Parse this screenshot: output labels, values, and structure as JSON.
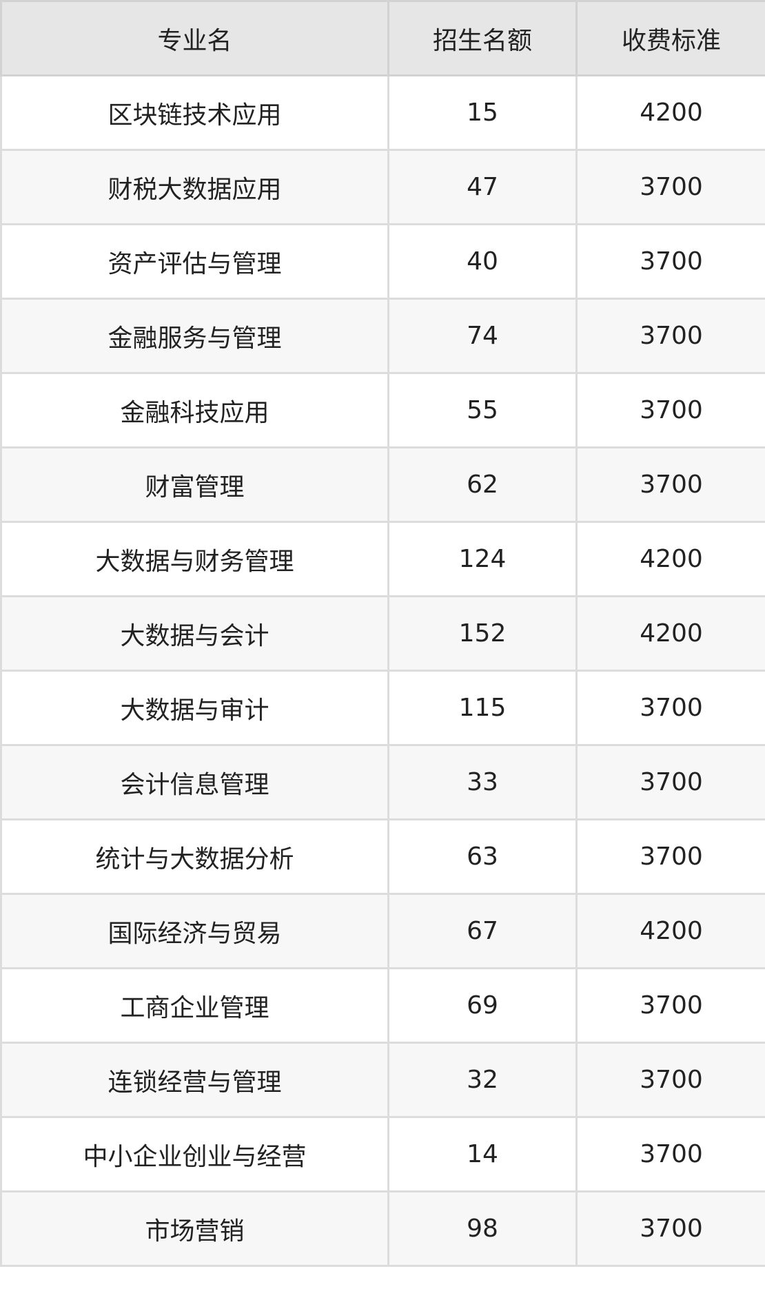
{
  "table": {
    "headers": [
      "专业名",
      "招生名额",
      "收费标准"
    ],
    "rows": [
      [
        "区块链技术应用",
        "15",
        "4200"
      ],
      [
        "财税大数据应用",
        "47",
        "3700"
      ],
      [
        "资产评估与管理",
        "40",
        "3700"
      ],
      [
        "金融服务与管理",
        "74",
        "3700"
      ],
      [
        "金融科技应用",
        "55",
        "3700"
      ],
      [
        "财富管理",
        "62",
        "3700"
      ],
      [
        "大数据与财务管理",
        "124",
        "4200"
      ],
      [
        "大数据与会计",
        "152",
        "4200"
      ],
      [
        "大数据与审计",
        "115",
        "3700"
      ],
      [
        "会计信息管理",
        "33",
        "3700"
      ],
      [
        "统计与大数据分析",
        "63",
        "3700"
      ],
      [
        "国际经济与贸易",
        "67",
        "4200"
      ],
      [
        "工商企业管理",
        "69",
        "3700"
      ],
      [
        "连锁经营与管理",
        "32",
        "3700"
      ],
      [
        "中小企业创业与经营",
        "14",
        "3700"
      ],
      [
        "市场营销",
        "98",
        "3700"
      ]
    ]
  }
}
